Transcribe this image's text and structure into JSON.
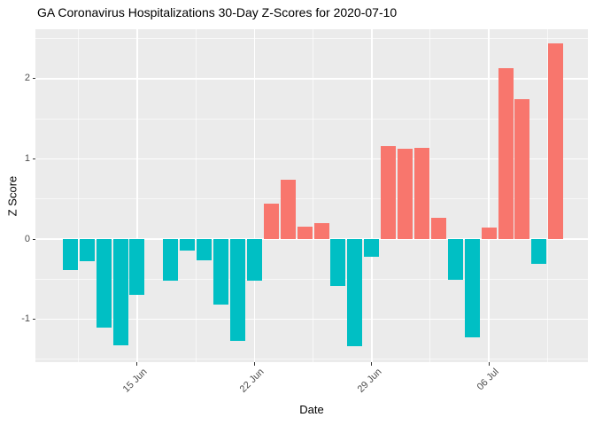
{
  "chart_data": {
    "type": "bar",
    "title": "GA Coronavirus Hospitalizations 30-Day Z-Scores for 2020-07-10",
    "xlabel": "Date",
    "ylabel": "Z Score",
    "x": [
      "2020-06-11",
      "2020-06-12",
      "2020-06-13",
      "2020-06-14",
      "2020-06-15",
      "2020-06-16",
      "2020-06-17",
      "2020-06-18",
      "2020-06-19",
      "2020-06-20",
      "2020-06-21",
      "2020-06-22",
      "2020-06-23",
      "2020-06-24",
      "2020-06-25",
      "2020-06-26",
      "2020-06-27",
      "2020-06-28",
      "2020-06-29",
      "2020-06-30",
      "2020-07-01",
      "2020-07-02",
      "2020-07-03",
      "2020-07-04",
      "2020-07-05",
      "2020-07-06",
      "2020-07-07",
      "2020-07-08",
      "2020-07-09",
      "2020-07-10"
    ],
    "values": [
      -0.39,
      -0.28,
      -1.1,
      -1.32,
      -0.7,
      0,
      -0.52,
      -0.14,
      -0.26,
      -0.82,
      -1.27,
      -0.52,
      0.44,
      0.74,
      0.15,
      0.2,
      -0.58,
      -1.34,
      -0.22,
      1.16,
      1.13,
      1.14,
      0.26,
      -0.51,
      -1.22,
      0.14,
      2.13,
      1.74,
      -0.31,
      2.44
    ],
    "x_tick_labels": [
      "15 Jun",
      "22 Jun",
      "29 Jun",
      "06 Jul"
    ],
    "x_tick_indices": [
      4,
      11,
      18,
      25
    ],
    "x_minor_indices": [
      0.5,
      7.5,
      14.5,
      21.5,
      28.5
    ],
    "y_ticks": [
      -1,
      0,
      1,
      2
    ],
    "y_tick_labels": [
      "-1",
      "0",
      "1",
      "2"
    ],
    "y_minor_ticks": [
      -1.5,
      -0.5,
      0.5,
      1.5,
      2.5
    ],
    "ylim": [
      -1.53,
      2.62
    ],
    "grid": "on",
    "legend": "none",
    "colors": {
      "positive_bar": "#F8766D",
      "negative_bar": "#00BFC4",
      "panel_background": "#EBEBEB",
      "gridline": "#FFFFFF",
      "tick_text": "#4D4D4D",
      "axis_title_text": "#000000",
      "tick_mark": "#333333"
    }
  }
}
